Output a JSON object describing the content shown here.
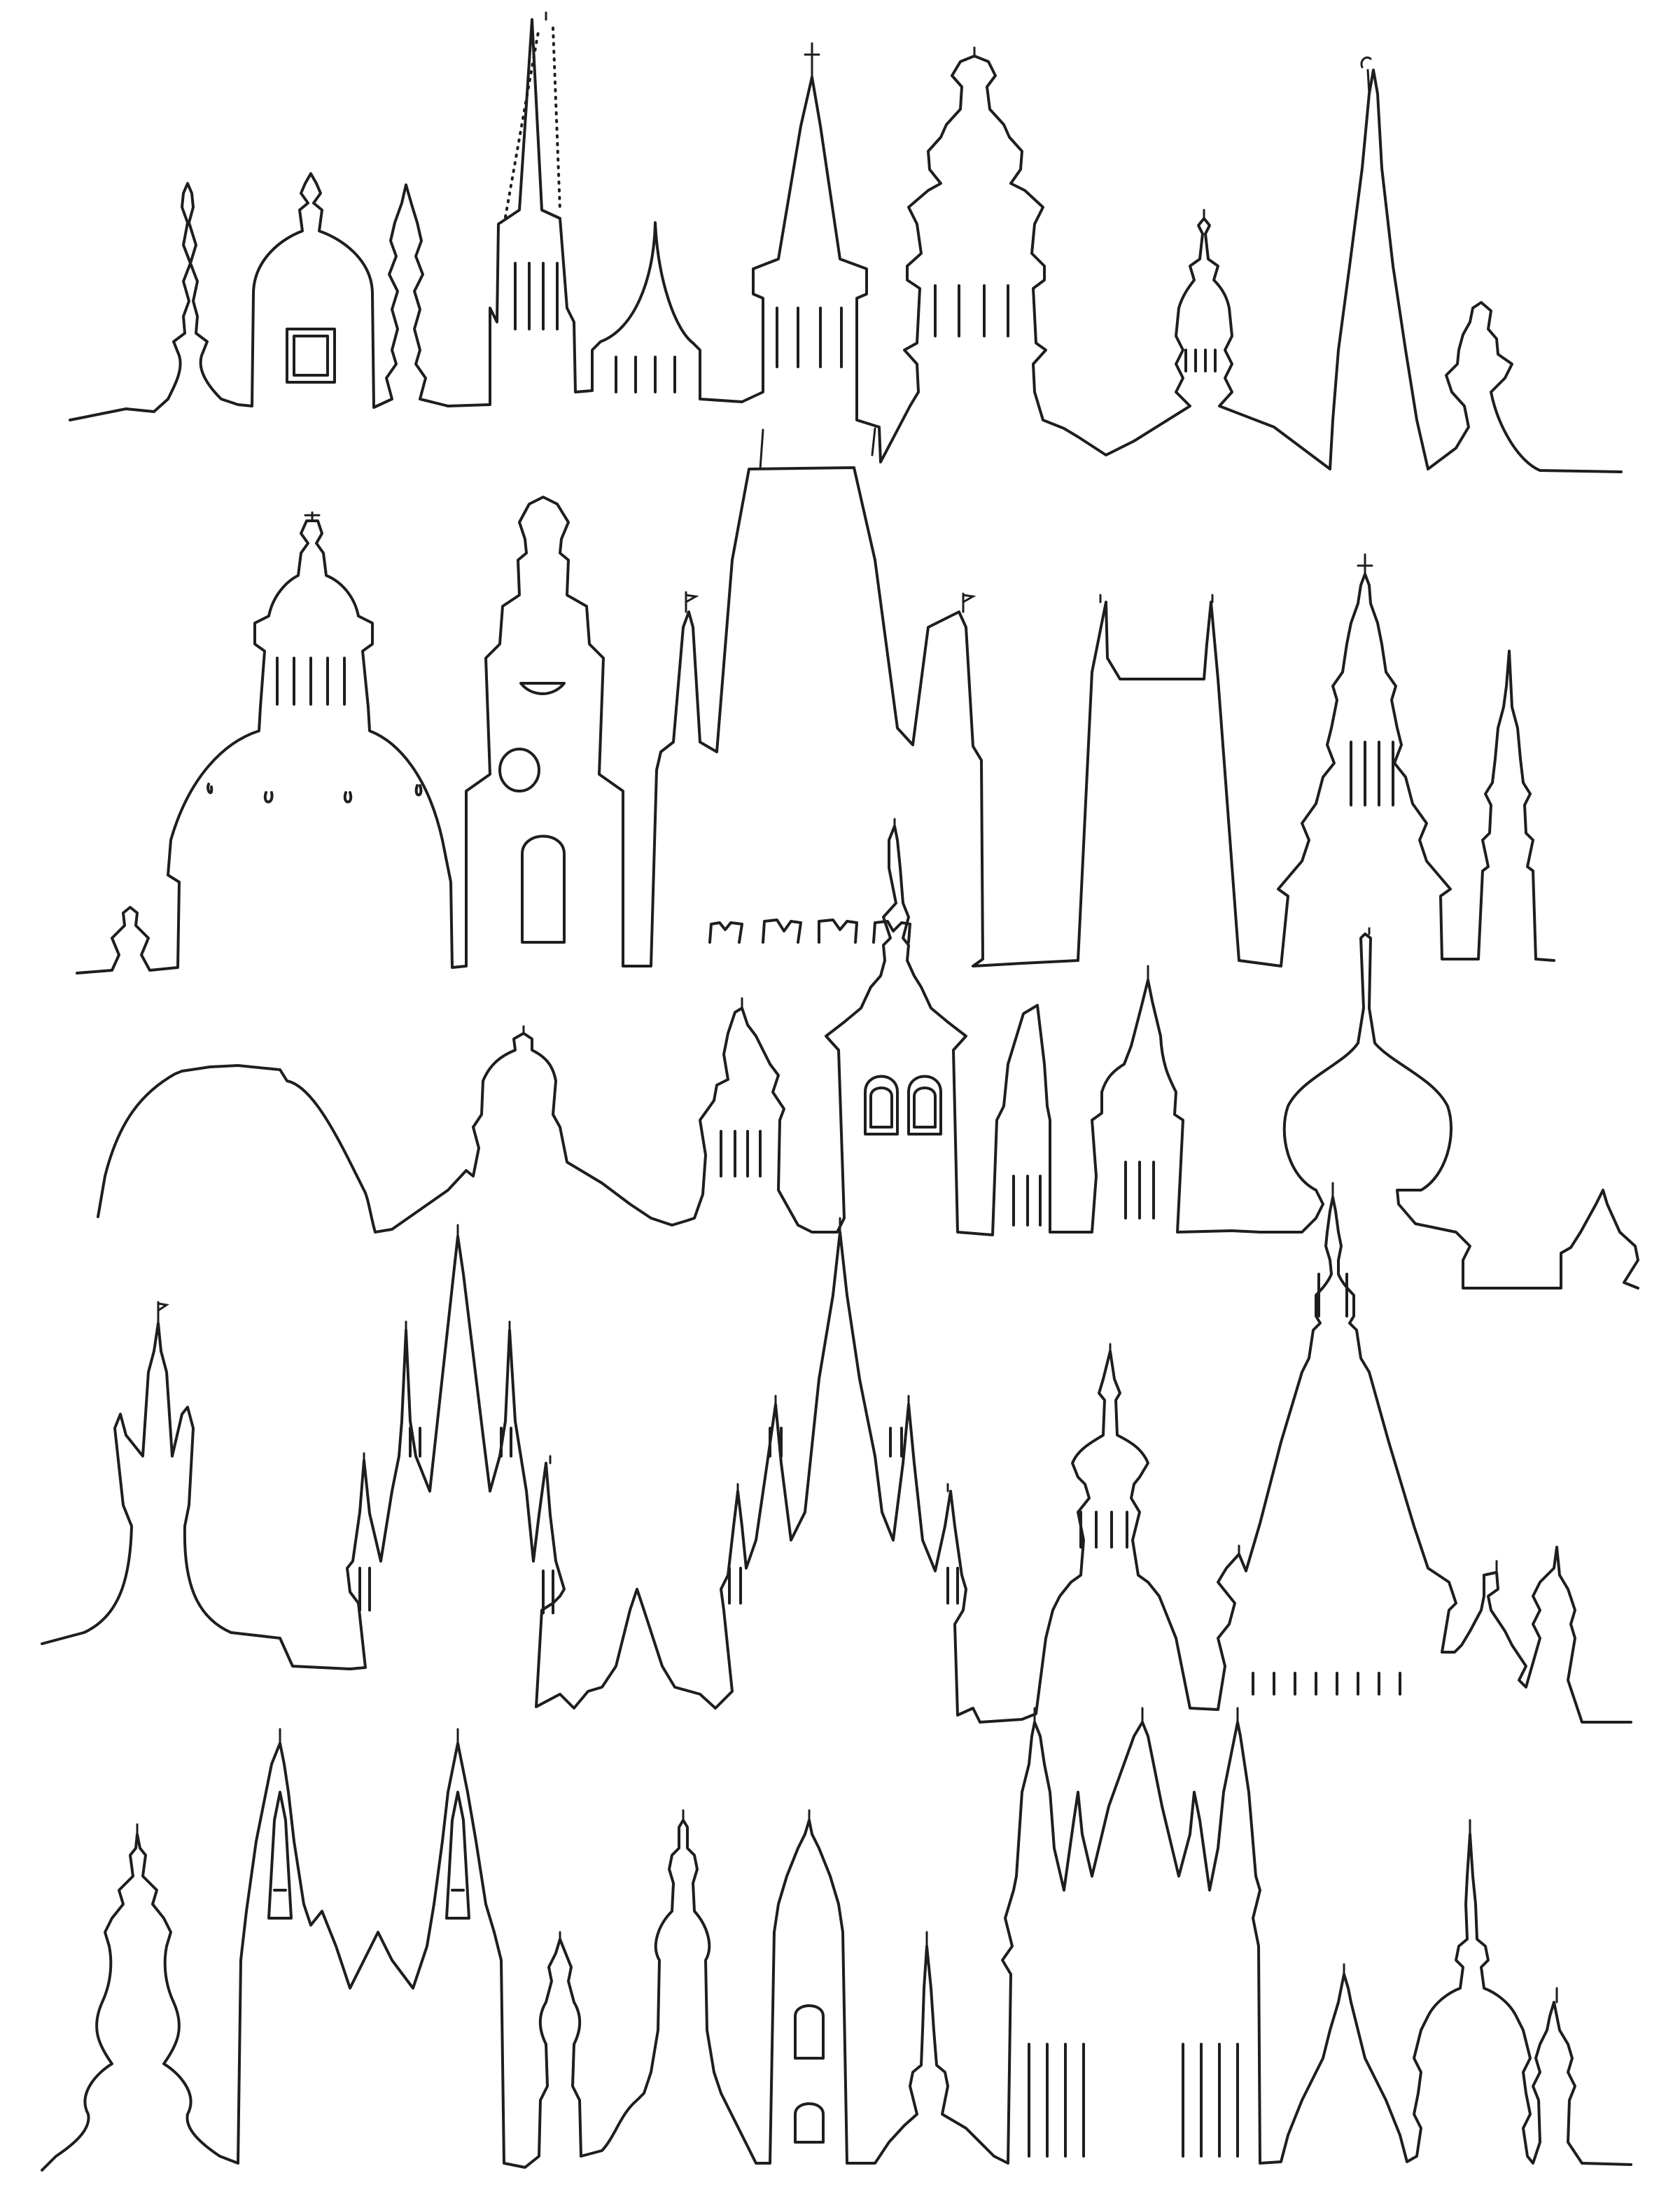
{
  "artwork": {
    "subject": "",
    "style_colors": {
      "ink": "#1e1e1e",
      "paper": "#ffffff"
    },
    "rows": [
      {
        "row": 1,
        "tower_count": 11
      },
      {
        "row": 2,
        "tower_count": 7
      },
      {
        "row": 3,
        "tower_count": 9
      },
      {
        "row": 4,
        "tower_count": 8
      },
      {
        "row": 5,
        "tower_count": 13
      }
    ]
  }
}
